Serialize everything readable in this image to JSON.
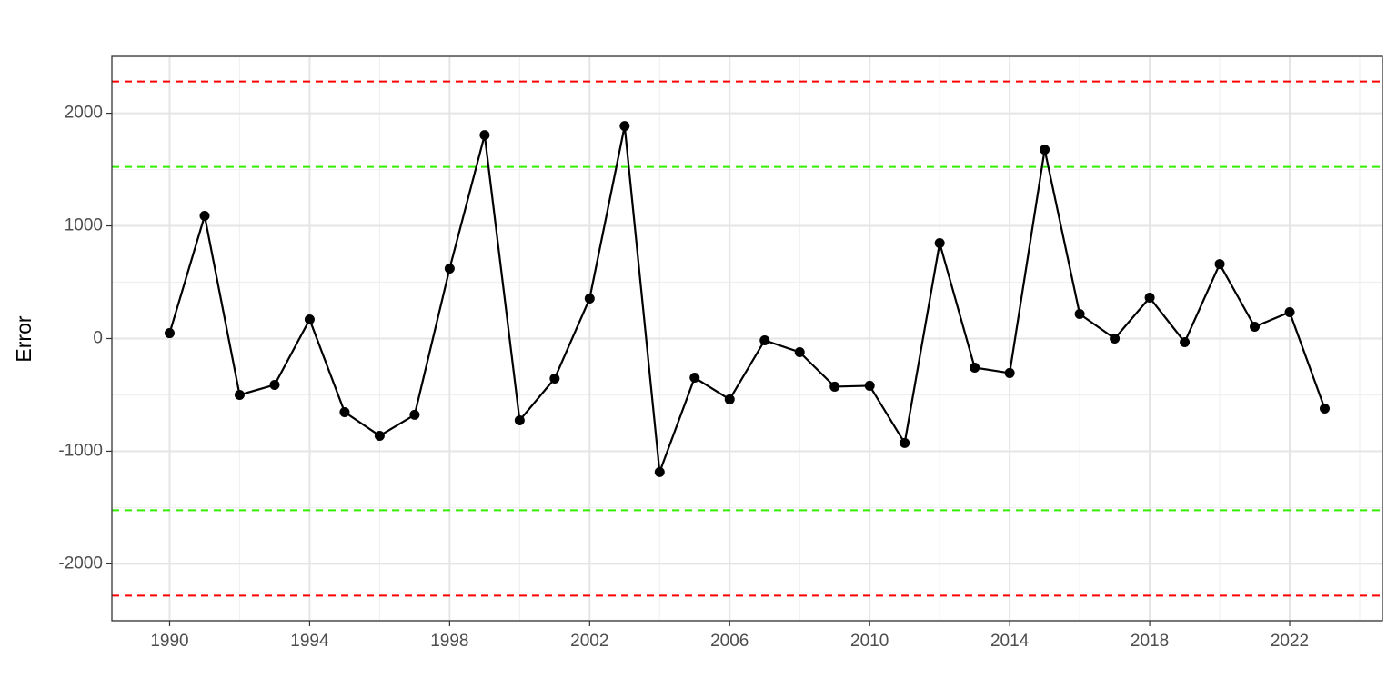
{
  "chart_data": {
    "type": "line",
    "y_label": "Error",
    "x": [
      1990,
      1991,
      1992,
      1993,
      1994,
      1995,
      1996,
      1997,
      1998,
      1999,
      2000,
      2001,
      2002,
      2003,
      2004,
      2005,
      2006,
      2007,
      2008,
      2009,
      2010,
      2011,
      2012,
      2013,
      2014,
      2015,
      2016,
      2017,
      2018,
      2019,
      2020,
      2021,
      2022,
      2023
    ],
    "values": [
      48,
      1089,
      -500,
      -411,
      169,
      -653,
      -863,
      -677,
      621,
      1806,
      -726,
      -355,
      355,
      1887,
      -1185,
      -347,
      -540,
      -16,
      -121,
      -427,
      -419,
      -927,
      847,
      -258,
      -306,
      1677,
      218,
      0,
      363,
      -32,
      661,
      105,
      234,
      -621
    ],
    "color": "#000000",
    "xlim": [
      1988.35,
      2024.65
    ],
    "xticks": [
      1990,
      1994,
      1998,
      2002,
      2006,
      2010,
      2014,
      2018,
      2022
    ],
    "ylim": [
      -2505,
      2505
    ],
    "yticks": [
      -2000,
      -1000,
      0,
      1000,
      2000
    ],
    "reference_lines": [
      {
        "value": 2282,
        "color": "#ff0000"
      },
      {
        "value": 1524,
        "color": "#33ee00"
      },
      {
        "value": -1524,
        "color": "#33ee00"
      },
      {
        "value": -2282,
        "color": "#ff0000"
      }
    ],
    "grid": true
  }
}
